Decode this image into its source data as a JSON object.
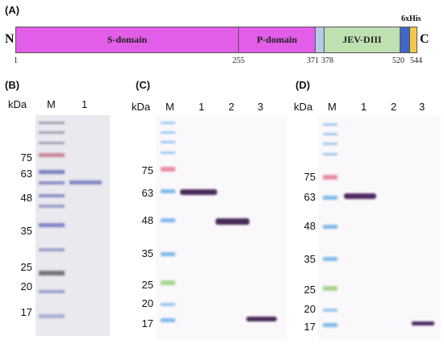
{
  "panels": {
    "a": {
      "label": "(A)",
      "n_terminus": "N",
      "c_terminus": "C",
      "tag": "6xHis",
      "segments": [
        {
          "name": "S-domain",
          "color": "#e25de8"
        },
        {
          "name": "P-domain",
          "color": "#e25de8"
        },
        {
          "name": "",
          "color": "#b7c9e6"
        },
        {
          "name": "JEV-DIII",
          "color": "#bfe0b1"
        },
        {
          "name": "",
          "color": "#4166c6"
        },
        {
          "name": "",
          "color": "#f3c94b"
        }
      ],
      "positions": [
        "1",
        "255",
        "371",
        "378",
        "520",
        "544"
      ]
    },
    "b": {
      "label": "(B)",
      "kda": "kDa",
      "lanes": [
        "M",
        "1"
      ],
      "markers": [
        "75",
        "63",
        "48",
        "35",
        "25",
        "20",
        "17"
      ]
    },
    "c": {
      "label": "(C)",
      "kda": "kDa",
      "lanes": [
        "M",
        "1",
        "2",
        "3"
      ],
      "markers": [
        "75",
        "63",
        "48",
        "35",
        "25",
        "20",
        "17"
      ]
    },
    "d": {
      "label": "(D)",
      "kda": "kDa",
      "lanes": [
        "M",
        "1",
        "2",
        "3"
      ],
      "markers": [
        "75",
        "63",
        "48",
        "35",
        "25",
        "20",
        "17"
      ]
    }
  }
}
